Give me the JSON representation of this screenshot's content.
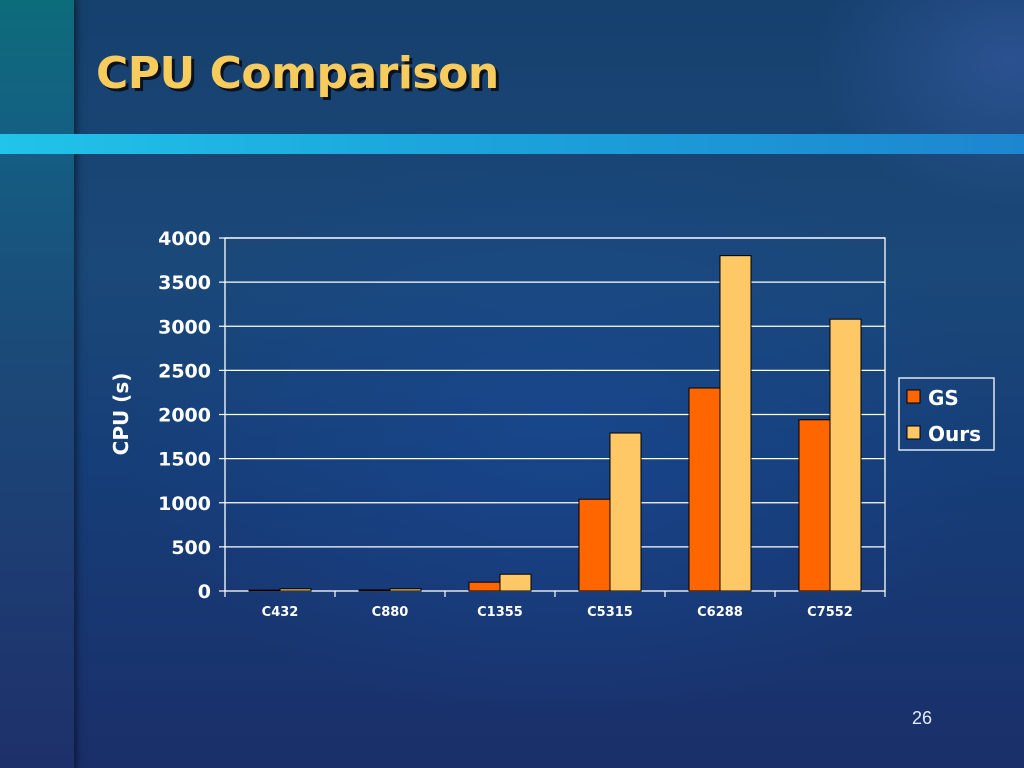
{
  "slide": {
    "title": "CPU Comparison",
    "page_number": "26"
  },
  "colors": {
    "series_gs": "#ff6600",
    "series_ours": "#ffc866",
    "title": "#f8cc5c",
    "accent_band": "#1ca7dd"
  },
  "chart_data": {
    "type": "bar",
    "title": "",
    "xlabel": "",
    "ylabel": "CPU (s)",
    "ylim": [
      0,
      4000
    ],
    "yticks": [
      0,
      500,
      1000,
      1500,
      2000,
      2500,
      3000,
      3500,
      4000
    ],
    "grid": true,
    "legend_position": "right",
    "categories": [
      "C432",
      "C880",
      "C1355",
      "C5315",
      "C6288",
      "C7552"
    ],
    "series": [
      {
        "name": "GS",
        "color": "#ff6600",
        "values": [
          10,
          12,
          100,
          1040,
          2300,
          1940
        ]
      },
      {
        "name": "Ours",
        "color": "#ffc866",
        "values": [
          25,
          25,
          190,
          1790,
          3800,
          3080
        ]
      }
    ]
  }
}
